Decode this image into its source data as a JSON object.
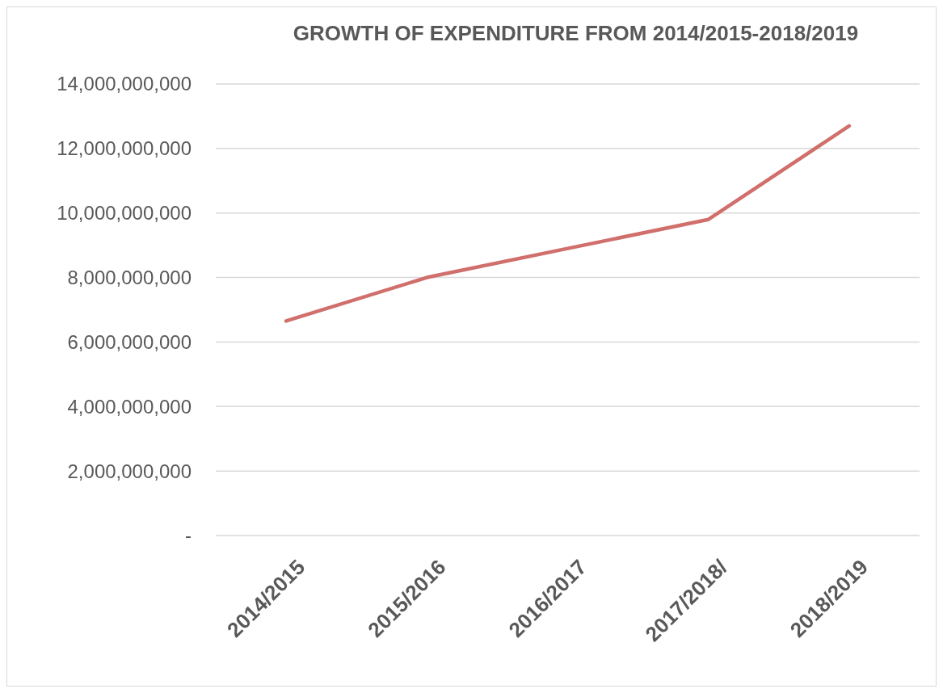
{
  "chart_data": {
    "type": "line",
    "title": "GROWTH OF EXPENDITURE FROM 2014/2015-2018/2019",
    "categories": [
      "2014/2015",
      "2015/2016",
      "2016/2017",
      "2017/2018/",
      "2018/2019"
    ],
    "series": [
      {
        "color": "#d06f6c",
        "values": [
          6650000000,
          8000000000,
          8900000000,
          9800000000,
          12700000000
        ]
      }
    ],
    "ylim": [
      0,
      14000000000
    ],
    "yticks": [
      {
        "value": 0,
        "label": "-"
      },
      {
        "value": 2000000000,
        "label": "2,000,000,000"
      },
      {
        "value": 4000000000,
        "label": "4,000,000,000"
      },
      {
        "value": 6000000000,
        "label": "6,000,000,000"
      },
      {
        "value": 8000000000,
        "label": "8,000,000,000"
      },
      {
        "value": 10000000000,
        "label": "10,000,000,000"
      },
      {
        "value": 12000000000,
        "label": "12,000,000,000"
      },
      {
        "value": 14000000000,
        "label": "14,000,000,000"
      }
    ],
    "grid": "y",
    "marker": "none",
    "line_style": "solid"
  }
}
